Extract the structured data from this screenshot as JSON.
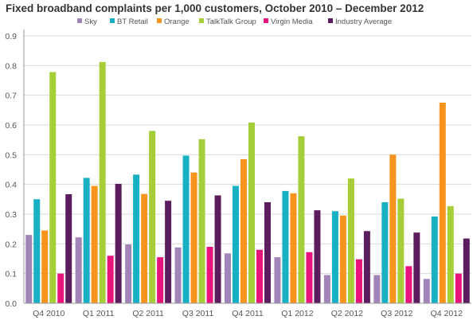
{
  "chart_data": {
    "type": "bar",
    "title": "Fixed broadband complaints per 1,000 customers, October 2010 – December 2012",
    "xlabel": "",
    "ylabel": "",
    "ylim": [
      0,
      0.9
    ],
    "yticks": [
      "0.0",
      "0.1",
      "0.2",
      "0.3",
      "0.4",
      "0.5",
      "0.6",
      "0.7",
      "0.8",
      "0.9"
    ],
    "grid": true,
    "legend_position": "top",
    "categories": [
      "Q4 2010",
      "Q1 2011",
      "Q2 2011",
      "Q3 2011",
      "Q4 2011",
      "Q1 2012",
      "Q2 2012",
      "Q3 2012",
      "Q4 2012"
    ],
    "series": [
      {
        "name": "Sky",
        "color": "#a185b9",
        "values": [
          0.23,
          0.222,
          0.198,
          0.188,
          0.168,
          0.155,
          0.095,
          0.095,
          0.082
        ]
      },
      {
        "name": "BT Retail",
        "color": "#1ab0c4",
        "values": [
          0.35,
          0.422,
          0.433,
          0.497,
          0.395,
          0.378,
          0.31,
          0.34,
          0.292
        ]
      },
      {
        "name": "Orange",
        "color": "#f7941d",
        "values": [
          0.245,
          0.395,
          0.368,
          0.44,
          0.485,
          0.37,
          0.295,
          0.5,
          0.675
        ]
      },
      {
        "name": "TalkTalk Group",
        "color": "#a6ce39",
        "values": [
          0.778,
          0.812,
          0.58,
          0.552,
          0.608,
          0.562,
          0.42,
          0.352,
          0.327
        ]
      },
      {
        "name": "Virgin Media",
        "color": "#e8137b",
        "values": [
          0.1,
          0.16,
          0.155,
          0.19,
          0.18,
          0.172,
          0.148,
          0.125,
          0.1
        ]
      },
      {
        "name": "Industry Average",
        "color": "#5c1d5e",
        "values": [
          0.367,
          0.402,
          0.345,
          0.363,
          0.34,
          0.313,
          0.243,
          0.238,
          0.218
        ]
      }
    ]
  }
}
